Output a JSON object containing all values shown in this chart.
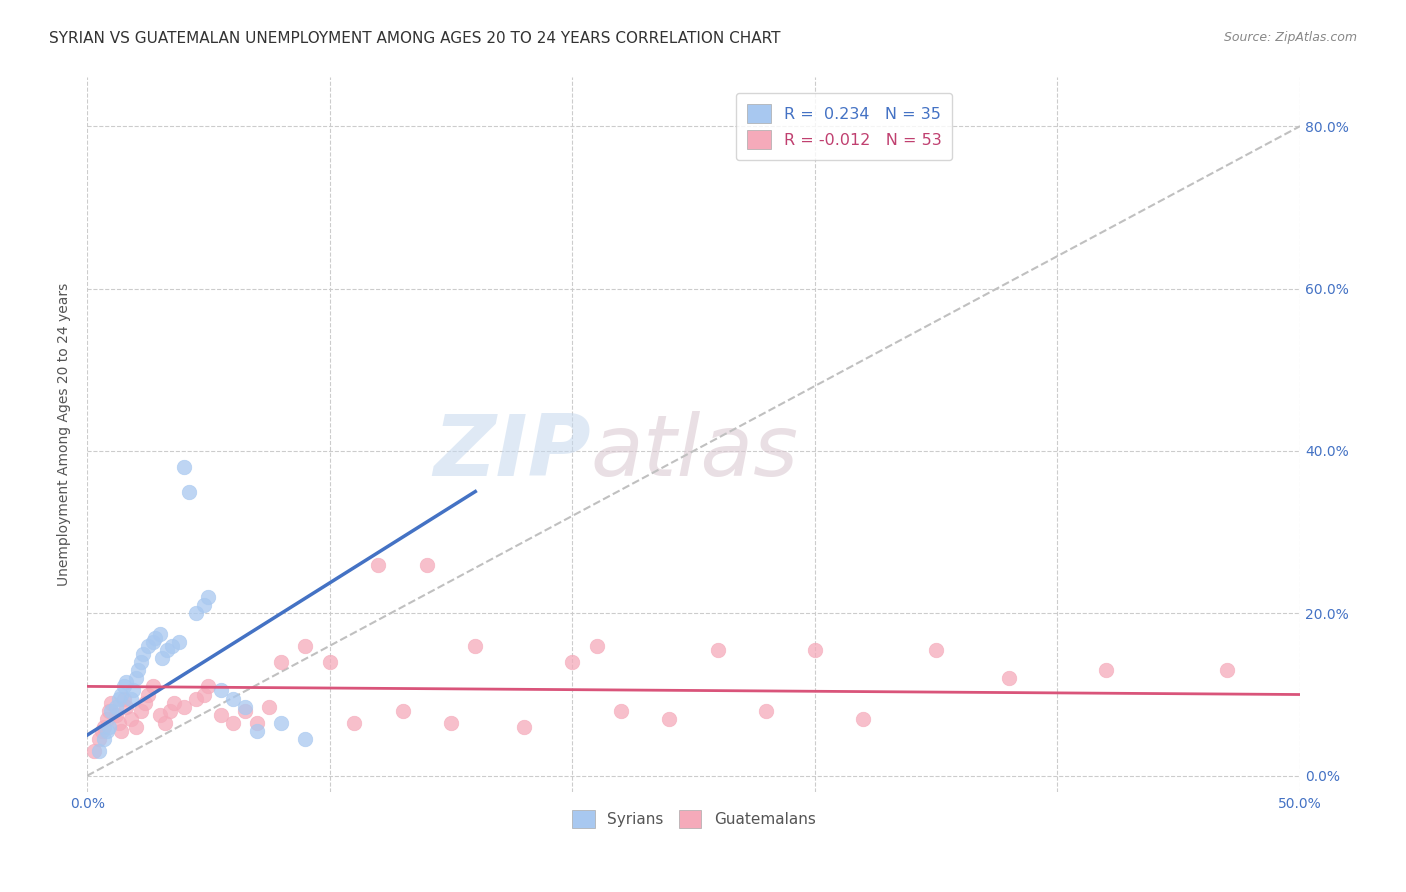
{
  "title": "SYRIAN VS GUATEMALAN UNEMPLOYMENT AMONG AGES 20 TO 24 YEARS CORRELATION CHART",
  "source": "Source: ZipAtlas.com",
  "ylabel": "Unemployment Among Ages 20 to 24 years",
  "xlim": [
    0.0,
    0.5
  ],
  "ylim": [
    -0.02,
    0.86
  ],
  "x_tick_vals": [
    0.0,
    0.1,
    0.2,
    0.3,
    0.4,
    0.5
  ],
  "x_tick_labels": [
    "0.0%",
    "",
    "",
    "",
    "",
    "50.0%"
  ],
  "y_tick_vals": [
    0.0,
    0.2,
    0.4,
    0.6,
    0.8
  ],
  "y_tick_labels_right": [
    "0.0%",
    "20.0%",
    "40.0%",
    "60.0%",
    "80.0%"
  ],
  "syrian_color": "#A8C8F0",
  "guatemalan_color": "#F5AABA",
  "syrian_line_color": "#4472C4",
  "guatemalan_line_color": "#D9547A",
  "dashed_line_color": "#C0C0C0",
  "background_color": "#FFFFFF",
  "grid_color": "#CCCCCC",
  "r_syrian": 0.234,
  "n_syrian": 35,
  "r_guatemalan": -0.012,
  "n_guatemalan": 53,
  "syrian_scatter_x": [
    0.005,
    0.007,
    0.008,
    0.009,
    0.01,
    0.012,
    0.013,
    0.014,
    0.015,
    0.016,
    0.018,
    0.019,
    0.02,
    0.021,
    0.022,
    0.023,
    0.025,
    0.027,
    0.028,
    0.03,
    0.031,
    0.033,
    0.035,
    0.038,
    0.04,
    0.042,
    0.045,
    0.048,
    0.05,
    0.055,
    0.06,
    0.065,
    0.07,
    0.08,
    0.09
  ],
  "syrian_scatter_y": [
    0.03,
    0.045,
    0.055,
    0.06,
    0.08,
    0.085,
    0.095,
    0.1,
    0.11,
    0.115,
    0.095,
    0.105,
    0.12,
    0.13,
    0.14,
    0.15,
    0.16,
    0.165,
    0.17,
    0.175,
    0.145,
    0.155,
    0.16,
    0.165,
    0.38,
    0.35,
    0.2,
    0.21,
    0.22,
    0.105,
    0.095,
    0.085,
    0.055,
    0.065,
    0.045
  ],
  "guatemalan_scatter_x": [
    0.003,
    0.005,
    0.006,
    0.007,
    0.008,
    0.009,
    0.01,
    0.012,
    0.013,
    0.014,
    0.015,
    0.016,
    0.018,
    0.02,
    0.022,
    0.024,
    0.025,
    0.027,
    0.03,
    0.032,
    0.034,
    0.036,
    0.04,
    0.045,
    0.048,
    0.05,
    0.055,
    0.06,
    0.065,
    0.07,
    0.075,
    0.08,
    0.09,
    0.1,
    0.11,
    0.12,
    0.13,
    0.14,
    0.15,
    0.16,
    0.18,
    0.2,
    0.21,
    0.22,
    0.24,
    0.26,
    0.28,
    0.3,
    0.32,
    0.35,
    0.38,
    0.42,
    0.47
  ],
  "guatemalan_scatter_y": [
    0.03,
    0.045,
    0.055,
    0.06,
    0.07,
    0.08,
    0.09,
    0.075,
    0.065,
    0.055,
    0.095,
    0.085,
    0.07,
    0.06,
    0.08,
    0.09,
    0.1,
    0.11,
    0.075,
    0.065,
    0.08,
    0.09,
    0.085,
    0.095,
    0.1,
    0.11,
    0.075,
    0.065,
    0.08,
    0.065,
    0.085,
    0.14,
    0.16,
    0.14,
    0.065,
    0.26,
    0.08,
    0.26,
    0.065,
    0.16,
    0.06,
    0.14,
    0.16,
    0.08,
    0.07,
    0.155,
    0.08,
    0.155,
    0.07,
    0.155,
    0.12,
    0.13,
    0.13
  ],
  "watermark_zip": "ZIP",
  "watermark_atlas": "atlas",
  "legend_label_syrian": "Syrians",
  "legend_label_guatemalan": "Guatemalans",
  "title_fontsize": 11,
  "axis_label_fontsize": 10,
  "tick_fontsize": 10
}
